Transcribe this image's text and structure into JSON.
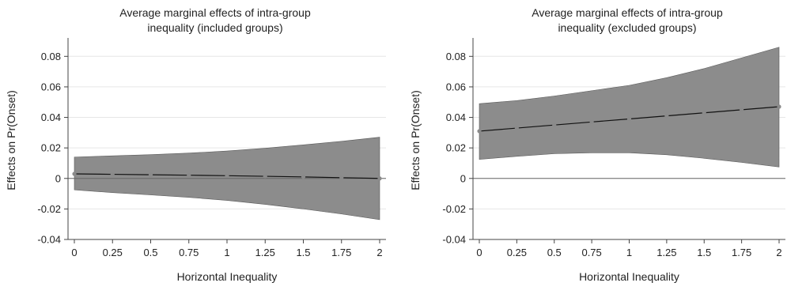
{
  "colors": {
    "band": "#8c8c8c",
    "band_edge": "#5a5a5a",
    "line": "#111111",
    "marker": "#8a8a8a",
    "grid": "#e6e6e6",
    "axis": "#444444",
    "zero_line": "#666666"
  },
  "chart_data": [
    {
      "type": "line",
      "title_lines": [
        "Average marginal effects of intra-group",
        "inequality (included groups)"
      ],
      "xlabel": "Horizontal Inequality",
      "ylabel": "Effects on Pr(Onset)",
      "x_ticks": [
        "0",
        "0.25",
        "0.5",
        "0.75",
        "1",
        "1.25",
        "1.5",
        "1.75",
        "2"
      ],
      "y_ticks": [
        "-0.04",
        "-0.02",
        "0",
        "0.02",
        "0.04",
        "0.06",
        "0.08"
      ],
      "xlim": [
        0,
        2
      ],
      "ylim": [
        -0.04,
        0.09
      ],
      "grid": true,
      "series": [
        {
          "x": [
            0,
            0.25,
            0.5,
            0.75,
            1,
            1.25,
            1.5,
            1.75,
            2
          ],
          "y": [
            0.003,
            0.0027,
            0.0024,
            0.0021,
            0.0018,
            0.0014,
            0.001,
            0.0005,
            0.0
          ],
          "upper": [
            0.014,
            0.0148,
            0.0156,
            0.0166,
            0.018,
            0.0198,
            0.022,
            0.0243,
            0.027
          ],
          "lower": [
            -0.0075,
            -0.0093,
            -0.0108,
            -0.0124,
            -0.0144,
            -0.017,
            -0.02,
            -0.0233,
            -0.027
          ]
        }
      ]
    },
    {
      "type": "line",
      "title_lines": [
        "Average marginal effects of intra-group",
        "inequality (excluded groups)"
      ],
      "xlabel": "Horizontal Inequality",
      "ylabel": "Effects on Pr(Onset)",
      "x_ticks": [
        "0",
        "0.25",
        "0.5",
        "0.75",
        "1",
        "1.25",
        "1.5",
        "1.75",
        "2"
      ],
      "y_ticks": [
        "-0.04",
        "-0.02",
        "0",
        "0.02",
        "0.04",
        "0.06",
        "0.08"
      ],
      "xlim": [
        0,
        2
      ],
      "ylim": [
        -0.04,
        0.09
      ],
      "grid": true,
      "series": [
        {
          "x": [
            0,
            0.25,
            0.5,
            0.75,
            1,
            1.25,
            1.5,
            1.75,
            2
          ],
          "y": [
            0.031,
            0.033,
            0.035,
            0.037,
            0.039,
            0.041,
            0.043,
            0.045,
            0.047
          ],
          "upper": [
            0.049,
            0.051,
            0.054,
            0.0575,
            0.061,
            0.066,
            0.072,
            0.079,
            0.086
          ],
          "lower": [
            0.0125,
            0.0145,
            0.0162,
            0.0168,
            0.0168,
            0.0155,
            0.0132,
            0.0105,
            0.0075
          ]
        }
      ]
    }
  ]
}
